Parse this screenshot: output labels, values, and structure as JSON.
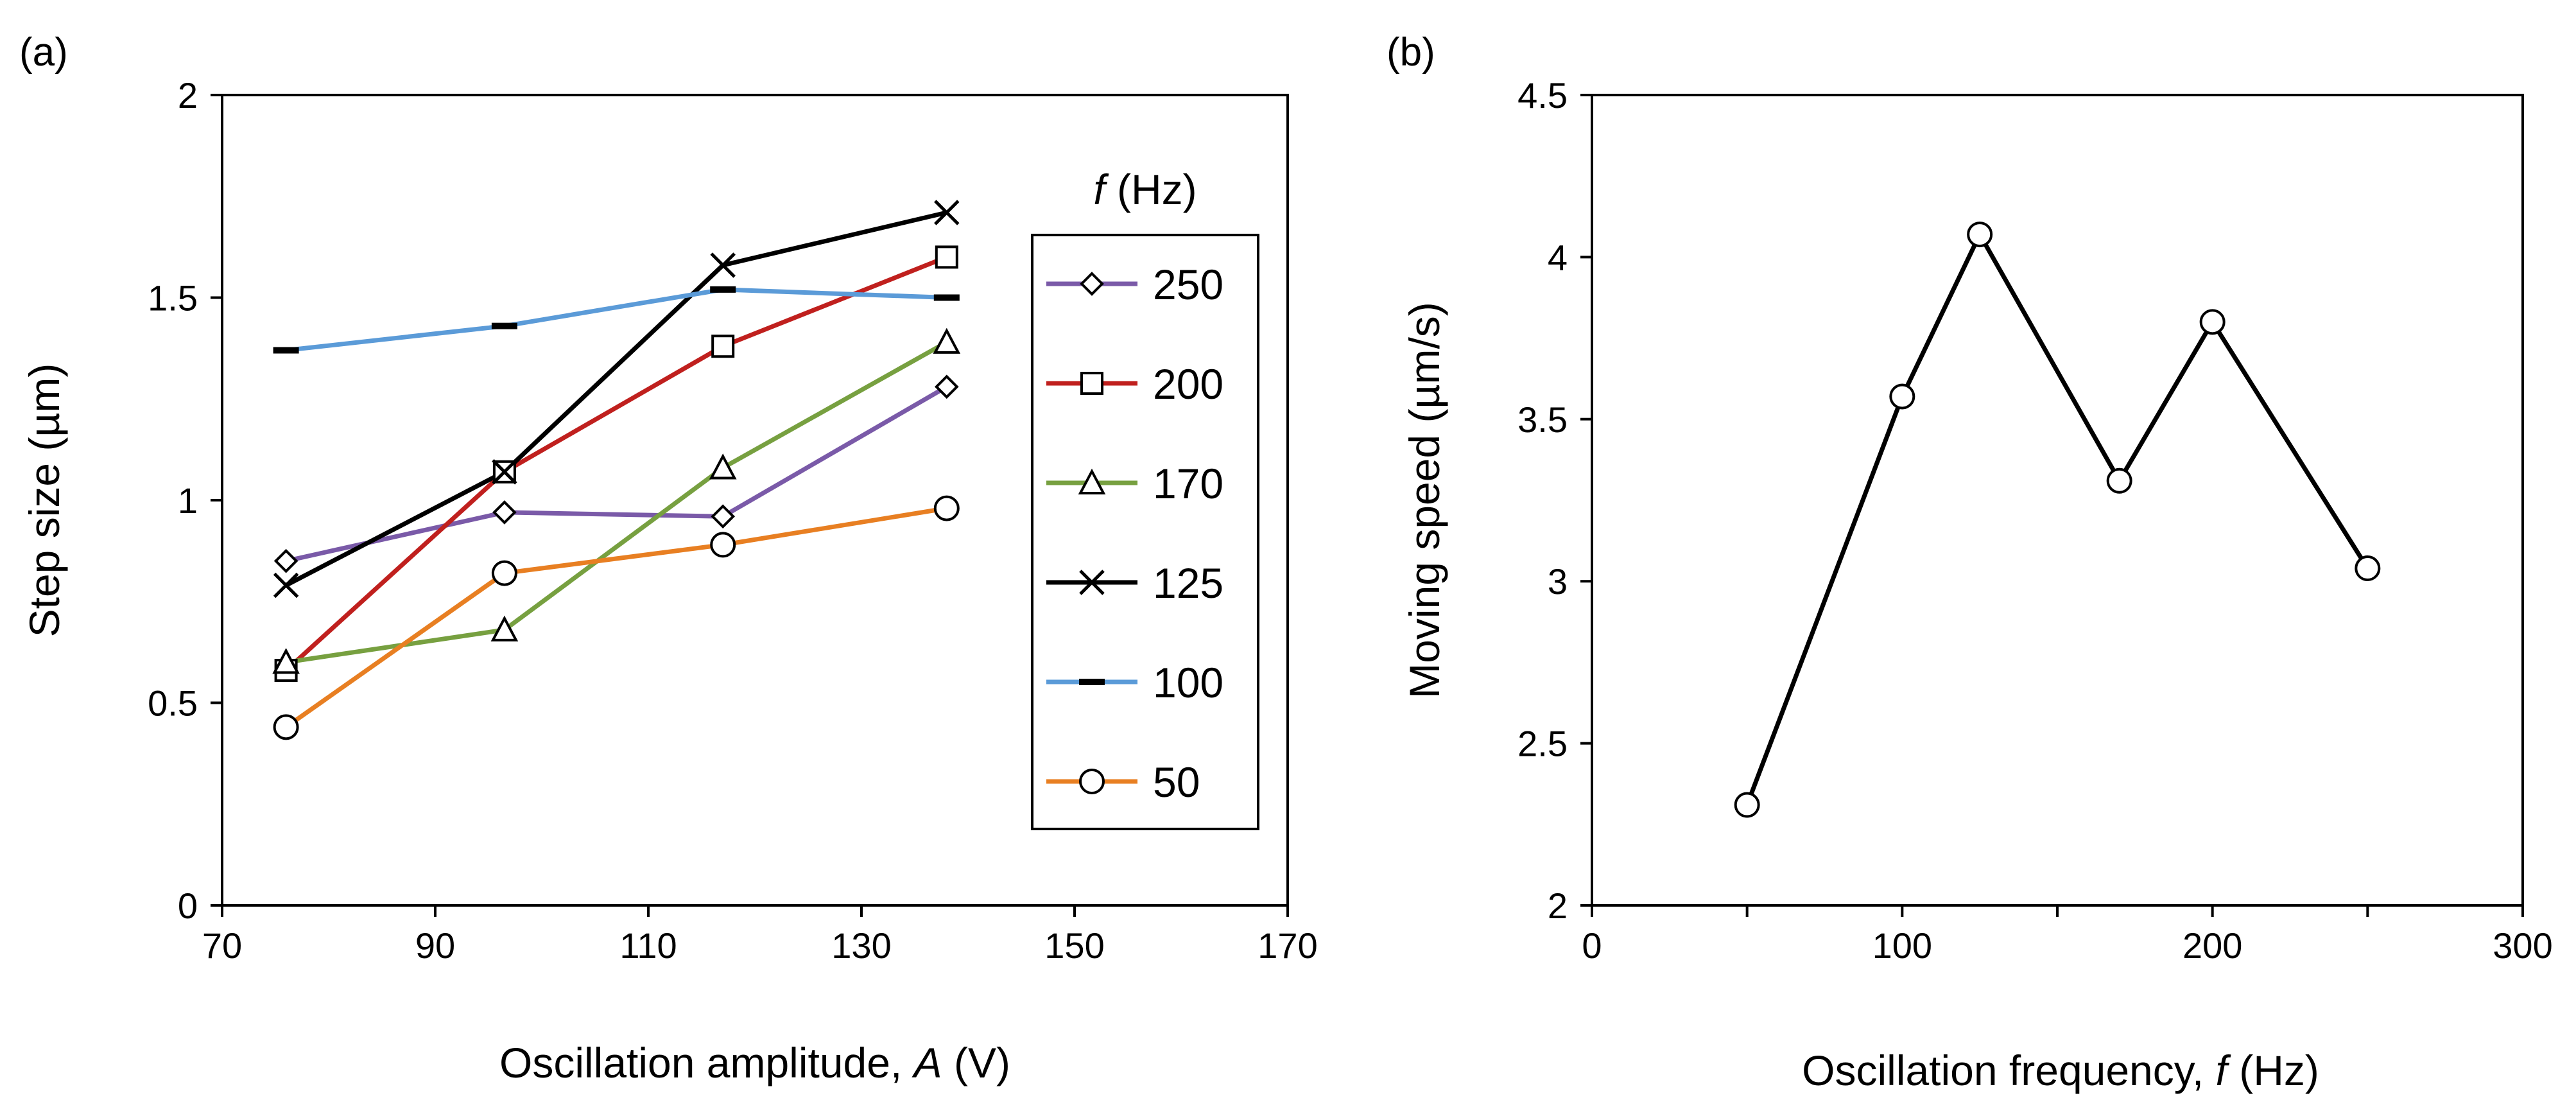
{
  "chart_data": [
    {
      "type": "line",
      "panel_label": "(a)",
      "xlabel": "Oscillation amplitude, A (V)",
      "xlabel_parts": [
        "Oscillation amplitude, ",
        "A",
        " (V)"
      ],
      "ylabel": "Step size (µm)",
      "xlim": [
        70,
        170
      ],
      "ylim": [
        0,
        2
      ],
      "x_ticks": [
        70,
        90,
        110,
        130,
        150,
        170
      ],
      "y_ticks": [
        0,
        0.5,
        1,
        1.5,
        2
      ],
      "x_tick_labels": [
        "70",
        "90",
        "110",
        "130",
        "150",
        "170"
      ],
      "y_tick_labels": [
        "0",
        "0.5",
        "1",
        "1.5",
        "2"
      ],
      "x": [
        76,
        96.5,
        117,
        138
      ],
      "legend_title_parts": [
        "f",
        " (Hz)"
      ],
      "legend_placement": "right",
      "grid": false,
      "series": [
        {
          "name": "250",
          "values": [
            0.85,
            0.97,
            0.96,
            1.28
          ],
          "color": "#7a5aa8",
          "marker": "diamond"
        },
        {
          "name": "200",
          "values": [
            0.58,
            1.07,
            1.38,
            1.6
          ],
          "color": "#c0201e",
          "marker": "square"
        },
        {
          "name": "170",
          "values": [
            0.6,
            0.68,
            1.08,
            1.39
          ],
          "color": "#77a040",
          "marker": "triangle"
        },
        {
          "name": "125",
          "values": [
            0.79,
            1.07,
            1.58,
            1.71
          ],
          "color": "#000000",
          "marker": "x"
        },
        {
          "name": "100",
          "values": [
            1.37,
            1.43,
            1.52,
            1.5
          ],
          "color": "#5b9bd8",
          "marker": "dash"
        },
        {
          "name": "50",
          "values": [
            0.44,
            0.82,
            0.89,
            0.98
          ],
          "color": "#e87f22",
          "marker": "circle"
        }
      ]
    },
    {
      "type": "line",
      "panel_label": "(b)",
      "xlabel": "Oscillation frequency, f (Hz)",
      "xlabel_parts": [
        "Oscillation frequency, ",
        "f",
        " (Hz)"
      ],
      "ylabel": "Moving speed (µm/s)",
      "xlim": [
        0,
        300
      ],
      "ylim": [
        2,
        4.5
      ],
      "x_ticks": [
        0,
        100,
        200,
        300
      ],
      "x_minor_ticks": [
        50,
        150,
        250
      ],
      "y_ticks": [
        2,
        2.5,
        3,
        3.5,
        4,
        4.5
      ],
      "x_tick_labels": [
        "0",
        "100",
        "200",
        "300"
      ],
      "y_tick_labels": [
        "2",
        "2.5",
        "3",
        "3.5",
        "4",
        "4.5"
      ],
      "grid": false,
      "series": [
        {
          "values": [
            2.31,
            3.57,
            4.07,
            3.31,
            3.8,
            3.04
          ],
          "x": [
            50,
            100,
            125,
            170,
            200,
            250
          ],
          "color": "#000000",
          "marker": "circle"
        }
      ]
    }
  ]
}
